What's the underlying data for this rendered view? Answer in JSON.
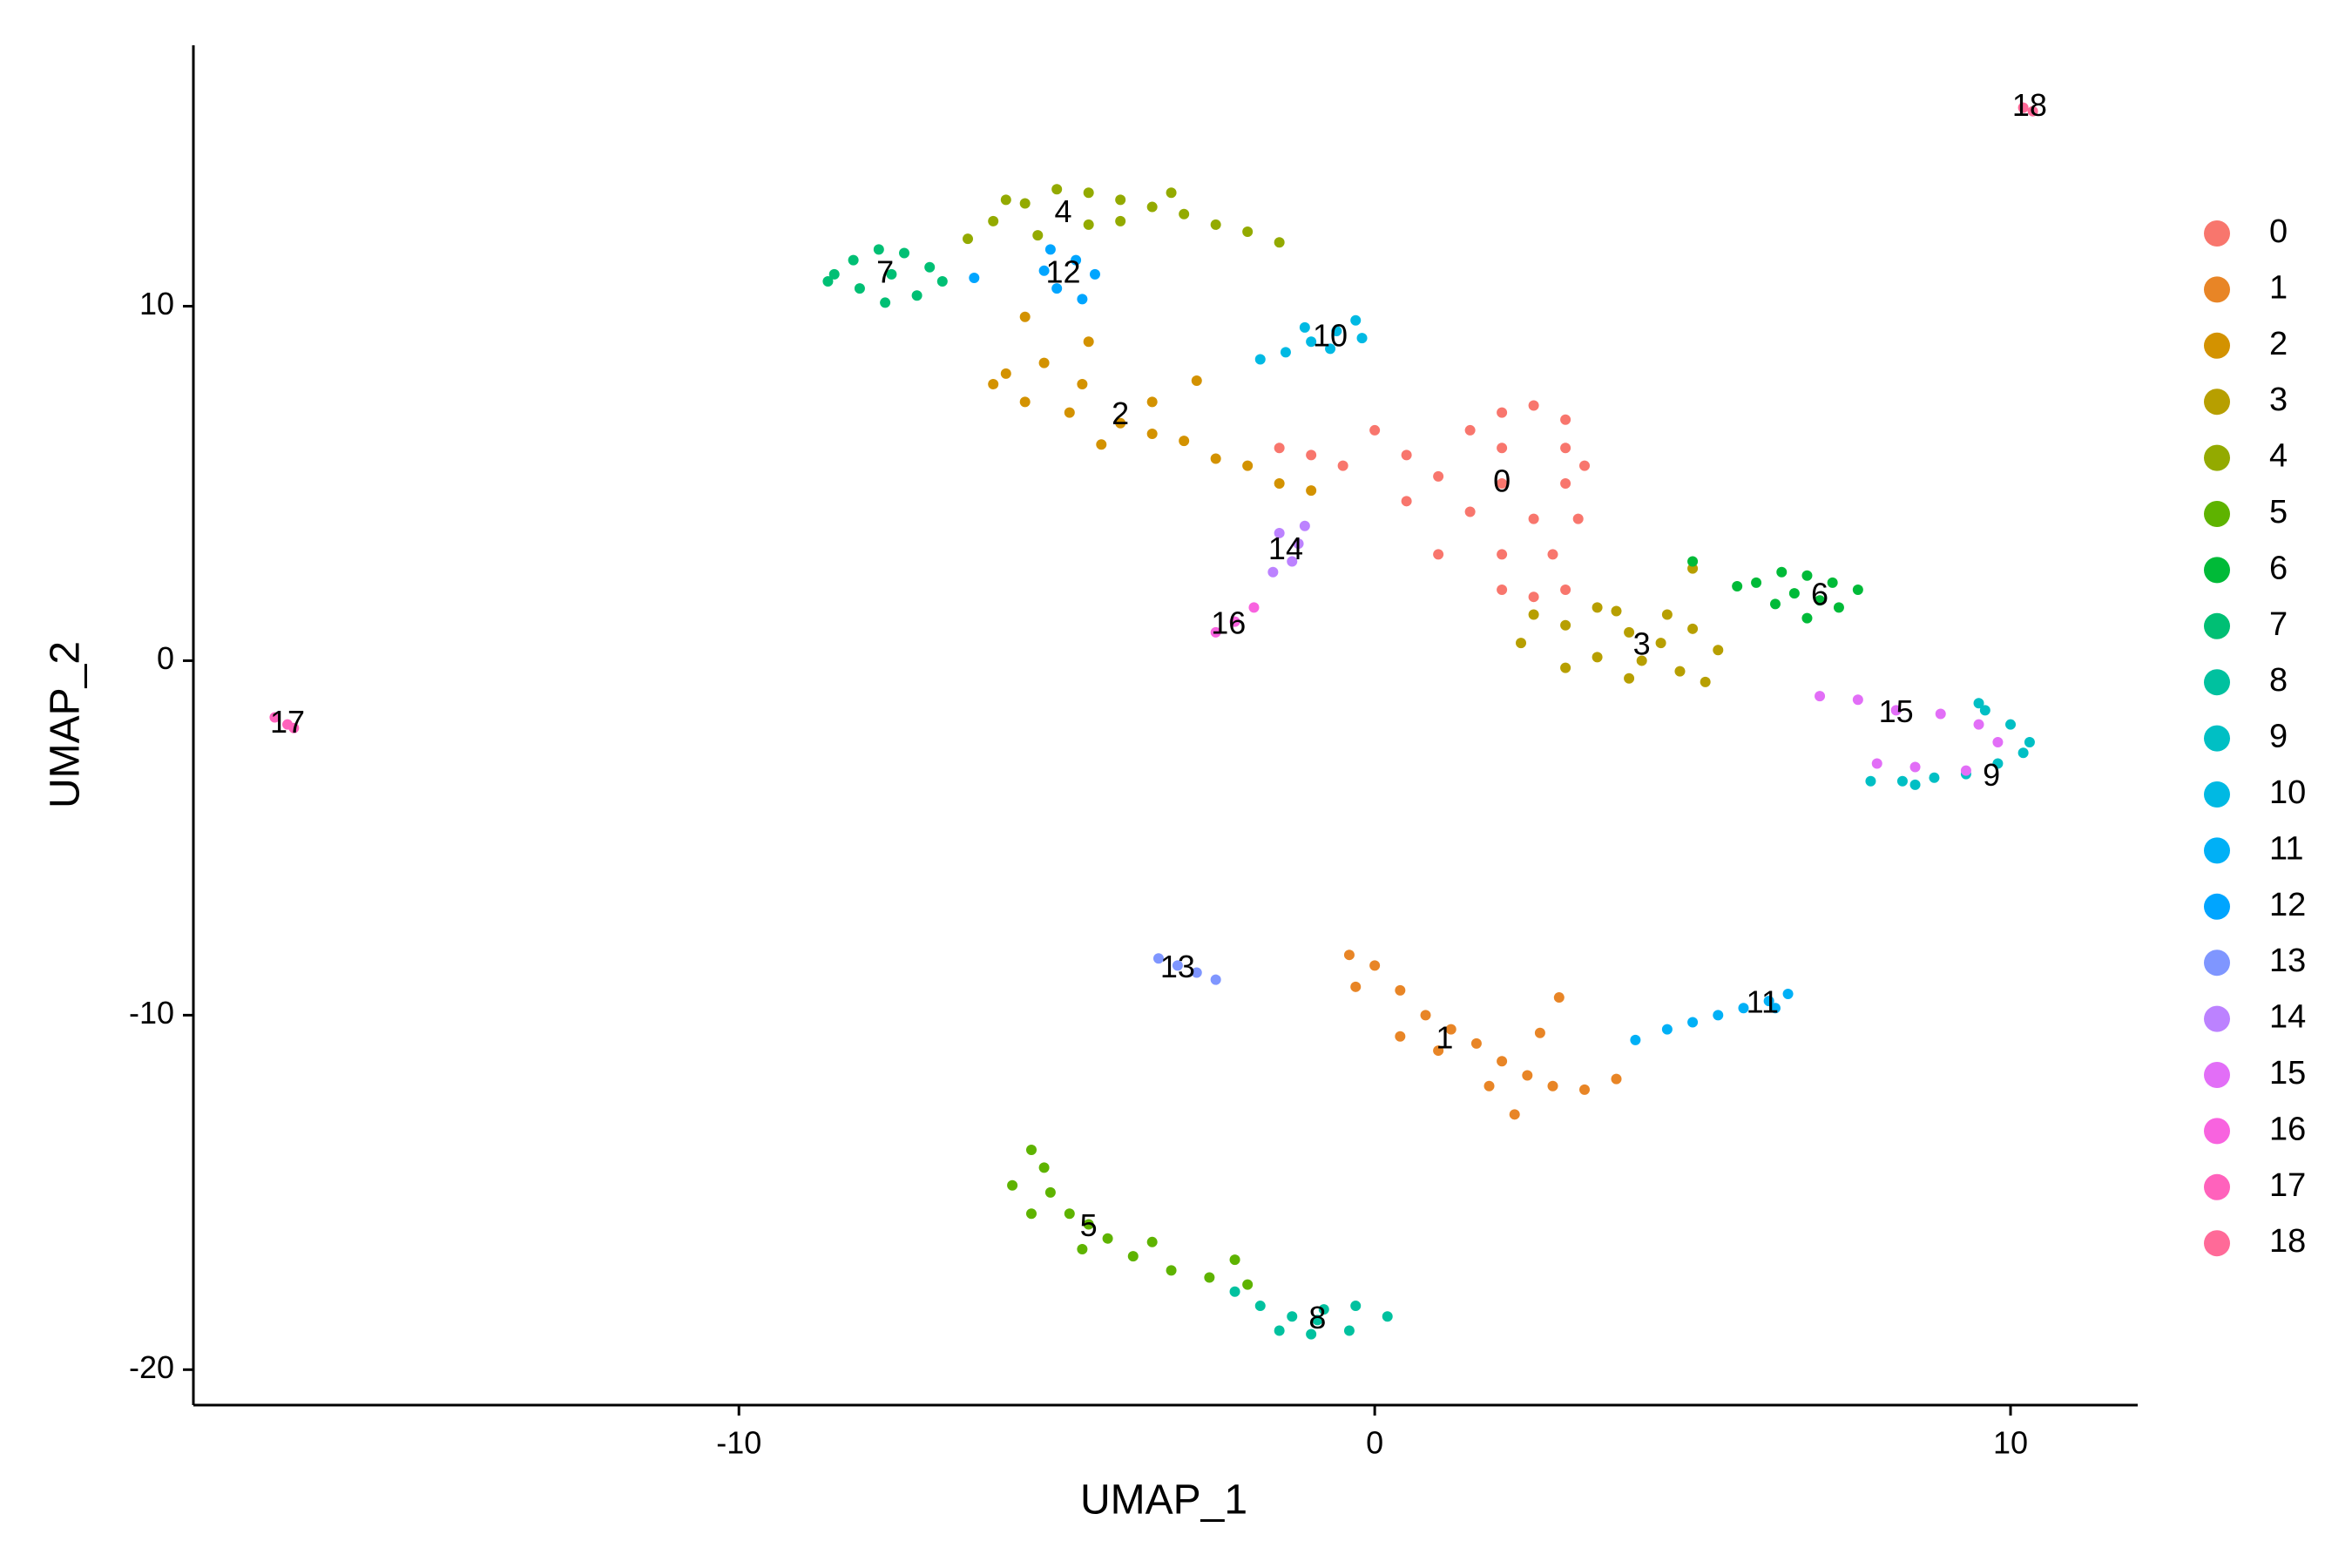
{
  "chart_data": {
    "type": "scatter",
    "x_label": "UMAP_1",
    "y_label": "UMAP_2",
    "xlim": [
      -18.58,
      12.0
    ],
    "ylim": [
      -21.0,
      17.36
    ],
    "xticks": [
      -10,
      0,
      10
    ],
    "yticks": [
      -20,
      -10,
      0,
      10
    ],
    "grid": false,
    "legend": "right",
    "series": [
      {
        "name": "0",
        "color": "#F8766D",
        "x": [
          2,
          2.5,
          3,
          1.5,
          2,
          3,
          0.5,
          1,
          2,
          3,
          3.2,
          2.5,
          1.5,
          0.5,
          1,
          2,
          2.8,
          2,
          3,
          -0.5,
          -1.5,
          -1,
          0,
          3.3,
          2.5
        ],
        "y": [
          7,
          7.2,
          6.8,
          6.5,
          6,
          6,
          5.8,
          5.2,
          5,
          5,
          4,
          4,
          4.2,
          4.5,
          3,
          3,
          3,
          2,
          2,
          5.5,
          6,
          5.8,
          6.5,
          5.5,
          1.8
        ]
      },
      {
        "name": "1",
        "color": "#E88526",
        "x": [
          -0.4,
          0,
          -0.3,
          0.4,
          0.8,
          1.2,
          1,
          1.6,
          2,
          2.4,
          2.8,
          3.3,
          3.8,
          2.6,
          2.9,
          1.8,
          2.2,
          0.4
        ],
        "y": [
          -8.3,
          -8.6,
          -9.2,
          -9.3,
          -10,
          -10.4,
          -11,
          -10.8,
          -11.3,
          -11.7,
          -12,
          -12.1,
          -11.8,
          -10.5,
          -9.5,
          -12,
          -12.8,
          -10.6
        ]
      },
      {
        "name": "2",
        "color": "#D39200",
        "x": [
          -5.8,
          -5.2,
          -4.6,
          -5.5,
          -4.8,
          -4,
          -4.3,
          -3.5,
          -3,
          -2.5,
          -2,
          -1.5,
          -3.5,
          -5.5,
          -4.5,
          -2.8,
          -1,
          -6
        ],
        "y": [
          8.1,
          8.4,
          7.8,
          7.3,
          7,
          6.7,
          6.1,
          6.4,
          6.2,
          5.7,
          5.5,
          5,
          7.3,
          9.7,
          9,
          7.9,
          4.8,
          7.8
        ]
      },
      {
        "name": "3",
        "color": "#B79F00",
        "x": [
          2.5,
          3,
          3.5,
          4,
          4.5,
          5,
          5.4,
          4.8,
          4,
          3.5,
          3,
          4.2,
          3.8,
          5.2,
          2.3,
          4.6,
          5
        ],
        "y": [
          1.3,
          1,
          1.5,
          0.8,
          0.5,
          0.9,
          0.3,
          -0.3,
          -0.5,
          0.1,
          -0.2,
          0,
          1.4,
          -0.6,
          0.5,
          1.3,
          2.6
        ]
      },
      {
        "name": "4",
        "color": "#93AA00",
        "x": [
          -6.4,
          -6,
          -5.5,
          -5,
          -4.5,
          -4,
          -3.5,
          -3,
          -2.5,
          -2,
          -4.5,
          -5.3,
          -4,
          -1.5,
          -5.8,
          -3.2
        ],
        "y": [
          11.9,
          12.4,
          12.9,
          13.3,
          13.2,
          13,
          12.8,
          12.6,
          12.3,
          12.1,
          12.3,
          12,
          12.4,
          11.8,
          13,
          13.2
        ]
      },
      {
        "name": "5",
        "color": "#5EB300",
        "x": [
          -5.4,
          -5.2,
          -5.7,
          -5.1,
          -4.8,
          -4.5,
          -4.2,
          -4.6,
          -3.8,
          -3.2,
          -2.6,
          -2,
          -5.4,
          -3.5,
          -2.2
        ],
        "y": [
          -13.8,
          -14.3,
          -14.8,
          -15,
          -15.6,
          -15.9,
          -16.3,
          -16.6,
          -16.8,
          -17.2,
          -17.4,
          -17.6,
          -15.6,
          -16.4,
          -16.9
        ]
      },
      {
        "name": "6",
        "color": "#00BA38",
        "x": [
          6,
          6.4,
          6.8,
          7.2,
          7.6,
          7.3,
          6.8,
          6.3,
          6.6,
          7,
          5.7,
          5
        ],
        "y": [
          2.2,
          2.5,
          2.4,
          2.2,
          2,
          1.5,
          1.2,
          1.6,
          1.9,
          1.7,
          2.1,
          2.8
        ]
      },
      {
        "name": "7",
        "color": "#00BF74",
        "x": [
          -8.5,
          -8.2,
          -7.8,
          -7.4,
          -7,
          -6.8,
          -7.2,
          -7.7,
          -8.1,
          -7.6,
          -8.6
        ],
        "y": [
          10.9,
          11.3,
          11.6,
          11.5,
          11.1,
          10.7,
          10.3,
          10.1,
          10.5,
          10.9,
          10.7
        ]
      },
      {
        "name": "8",
        "color": "#00C19F",
        "x": [
          -2.2,
          -1.8,
          -1.3,
          -0.8,
          -0.3,
          0.2,
          -0.4,
          -1,
          -1.5,
          -0.9
        ],
        "y": [
          -17.8,
          -18.2,
          -18.5,
          -18.3,
          -18.2,
          -18.5,
          -18.9,
          -19,
          -18.9,
          -18.6
        ]
      },
      {
        "name": "9",
        "color": "#00BFC4",
        "x": [
          7.8,
          8.3,
          8.8,
          9.3,
          9.8,
          10.2,
          10.3,
          10,
          9.6,
          9.5,
          8.5
        ],
        "y": [
          -3.4,
          -3.4,
          -3.3,
          -3.2,
          -2.9,
          -2.6,
          -2.3,
          -1.8,
          -1.4,
          -1.2,
          -3.5
        ]
      },
      {
        "name": "10",
        "color": "#00B9E3",
        "x": [
          -1.4,
          -1,
          -0.6,
          -0.3,
          -0.2,
          -0.7,
          -1.1,
          -1.8
        ],
        "y": [
          8.7,
          9,
          9.3,
          9.6,
          9.1,
          8.8,
          9.4,
          8.5
        ]
      },
      {
        "name": "11",
        "color": "#00B0F6",
        "x": [
          4.1,
          4.6,
          5,
          5.4,
          5.8,
          6.2,
          6.5,
          6.3
        ],
        "y": [
          -10.7,
          -10.4,
          -10.2,
          -10,
          -9.8,
          -9.6,
          -9.4,
          -9.8
        ]
      },
      {
        "name": "12",
        "color": "#00A5FF",
        "x": [
          -5.1,
          -4.7,
          -4.4,
          -5,
          -4.6,
          -5.2,
          -6.3
        ],
        "y": [
          11.6,
          11.3,
          10.9,
          10.5,
          10.2,
          11,
          10.8
        ]
      },
      {
        "name": "13",
        "color": "#7F96FF",
        "x": [
          -3.4,
          -3.1,
          -2.8,
          -2.5
        ],
        "y": [
          -8.4,
          -8.6,
          -8.8,
          -9
        ]
      },
      {
        "name": "14",
        "color": "#BC82FF",
        "x": [
          -1.5,
          -1.2,
          -1.3,
          -1.6,
          -1.1
        ],
        "y": [
          3.6,
          3.3,
          2.8,
          2.5,
          3.8
        ]
      },
      {
        "name": "15",
        "color": "#E26EF7",
        "x": [
          7,
          7.6,
          8.2,
          8.9,
          9.5,
          9.8,
          9.3,
          8.5,
          7.9
        ],
        "y": [
          -1,
          -1.1,
          -1.4,
          -1.5,
          -1.8,
          -2.3,
          -3.1,
          -3,
          -2.9
        ]
      },
      {
        "name": "16",
        "color": "#F863DF",
        "x": [
          -2.5,
          -2.2,
          -1.9
        ],
        "y": [
          0.8,
          1.1,
          1.5
        ]
      },
      {
        "name": "17",
        "color": "#FF62BC",
        "x": [
          -17.3,
          -17.1,
          -17.0
        ],
        "y": [
          -1.6,
          -1.8,
          -1.9
        ]
      },
      {
        "name": "18",
        "color": "#FF6A98",
        "x": [
          10.2,
          10.35
        ],
        "y": [
          15.6,
          15.5
        ]
      }
    ],
    "annotations": [
      {
        "text": "0",
        "x": 2.0,
        "y": 5.0
      },
      {
        "text": "1",
        "x": 1.1,
        "y": -10.7
      },
      {
        "text": "2",
        "x": -4.0,
        "y": 6.9
      },
      {
        "text": "3",
        "x": 4.2,
        "y": 0.4
      },
      {
        "text": "4",
        "x": -4.9,
        "y": 12.6
      },
      {
        "text": "5",
        "x": -4.5,
        "y": -16.0
      },
      {
        "text": "6",
        "x": 7.0,
        "y": 1.8
      },
      {
        "text": "7",
        "x": -7.7,
        "y": 10.9
      },
      {
        "text": "8",
        "x": -0.9,
        "y": -18.6
      },
      {
        "text": "9",
        "x": 9.7,
        "y": -3.3
      },
      {
        "text": "10",
        "x": -0.7,
        "y": 9.1
      },
      {
        "text": "11",
        "x": 6.1,
        "y": -9.7
      },
      {
        "text": "12",
        "x": -4.9,
        "y": 10.9
      },
      {
        "text": "13",
        "x": -3.1,
        "y": -8.7
      },
      {
        "text": "14",
        "x": -1.4,
        "y": 3.1
      },
      {
        "text": "15",
        "x": 8.2,
        "y": -1.5
      },
      {
        "text": "16",
        "x": -2.3,
        "y": 1.0
      },
      {
        "text": "17",
        "x": -17.1,
        "y": -1.8
      },
      {
        "text": "18",
        "x": 10.3,
        "y": 15.6
      }
    ]
  }
}
